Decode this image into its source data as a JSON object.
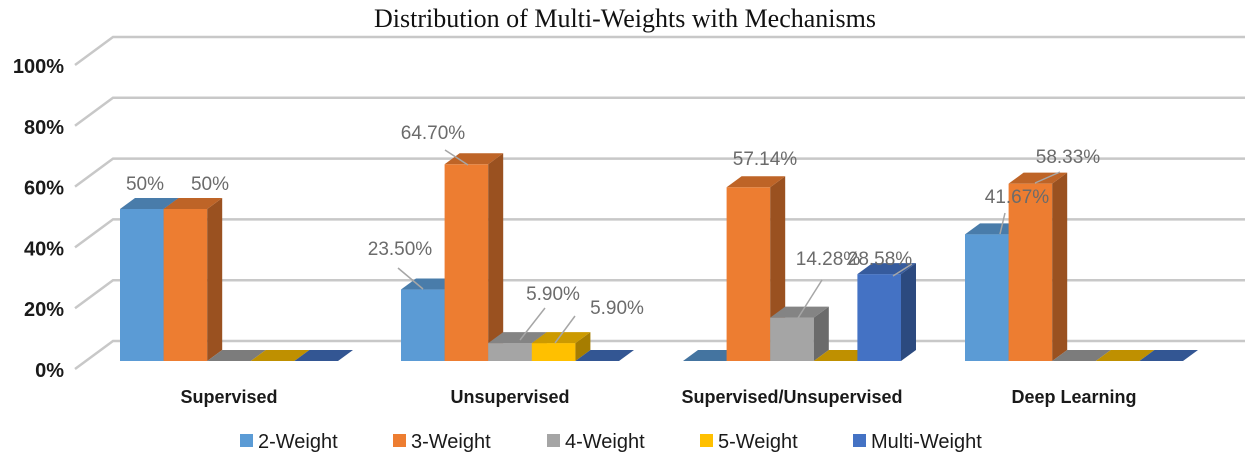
{
  "chart_data": {
    "type": "bar",
    "style": "3d-clustered-column",
    "title": "Distribution of Multi-Weights with Mechanisms",
    "xlabel": "",
    "ylabel": "",
    "ylim": [
      0,
      100
    ],
    "yticks": [
      "0%",
      "20%",
      "40%",
      "60%",
      "80%",
      "100%"
    ],
    "grid": true,
    "legend_position": "bottom",
    "categories": [
      "Supervised",
      "Unsupervised",
      "Supervised/Unsupervised",
      "Deep Learning"
    ],
    "series": [
      {
        "name": "2-Weight",
        "color": "#5B9BD5",
        "values": [
          50,
          23.5,
          0,
          41.67
        ],
        "labels": [
          "50%",
          "23.50%",
          "",
          "41.67%"
        ]
      },
      {
        "name": "3-Weight",
        "color": "#ED7D31",
        "values": [
          50,
          64.7,
          57.14,
          58.33
        ],
        "labels": [
          "50%",
          "64.70%",
          "57.14%",
          "58.33%"
        ]
      },
      {
        "name": "4-Weight",
        "color": "#A5A5A5",
        "values": [
          0,
          5.9,
          14.28,
          0
        ],
        "labels": [
          "",
          "5.90%",
          "14.28%",
          ""
        ]
      },
      {
        "name": "5-Weight",
        "color": "#FFC000",
        "values": [
          0,
          5.9,
          0,
          0
        ],
        "labels": [
          "",
          "5.90%",
          "",
          ""
        ]
      },
      {
        "name": "Multi-Weight",
        "color": "#4472C4",
        "values": [
          0,
          0,
          28.58,
          0
        ],
        "labels": [
          "",
          "",
          "28.58%",
          ""
        ]
      }
    ]
  }
}
